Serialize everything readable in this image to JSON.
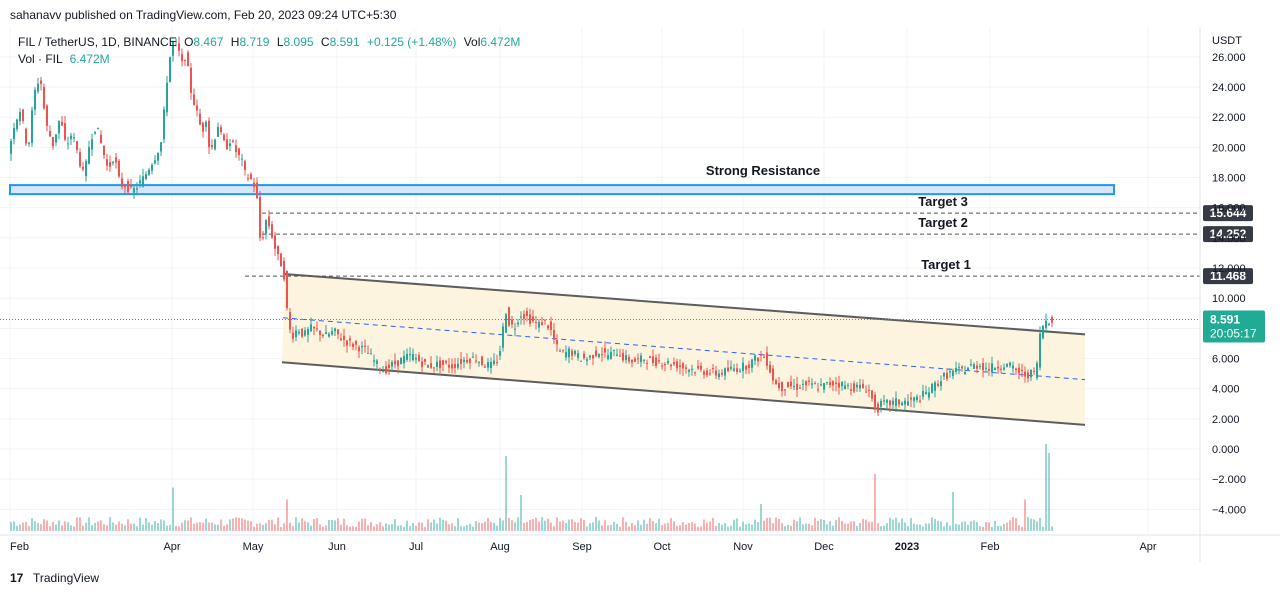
{
  "header": {
    "published": "sahanavv published on TradingView.com, Feb 20, 2023 09:24 UTC+5:30"
  },
  "legend": {
    "symbol": "FIL / TetherUS, 1D, BINANCE",
    "o_label": "O",
    "o_value": "8.467",
    "h_label": "H",
    "h_value": "8.719",
    "l_label": "L",
    "l_value": "8.095",
    "c_label": "C",
    "c_value": "8.591",
    "change": "+0.125 (+1.48%)",
    "vol_label": "Vol",
    "vol_value": "6.472M",
    "vol2_label": "Vol · FIL",
    "vol2_value": "6.472M"
  },
  "footer": {
    "logo": "17",
    "brand": "TradingView"
  },
  "colors": {
    "up": "#26a69a",
    "down": "#ef5350",
    "channel_fill": "#fdf3dc",
    "channel_line": "#5d5d5d",
    "midline": "#2962ff",
    "resistance_fill": "#d6e6fb",
    "resistance_stroke": "#2196f3",
    "price_badge": "#22ab94",
    "target_badge": "#363a45"
  },
  "chart_data": {
    "type": "candlestick",
    "currency": "USDT",
    "y_ticks": [
      "26.000",
      "24.000",
      "22.000",
      "20.000",
      "18.000",
      "16.000",
      "14.000",
      "12.000",
      "10.000",
      "8.000",
      "6.000",
      "4.000",
      "2.000",
      "0.000",
      "−2.000",
      "−4.000"
    ],
    "y_tick_values": [
      26,
      24,
      22,
      20,
      18,
      16,
      14,
      12,
      10,
      8,
      6,
      4,
      2,
      0,
      -2,
      -4
    ],
    "ylim": [
      -5,
      27
    ],
    "x_ticks": [
      "Feb",
      "Apr",
      "May",
      "Jun",
      "Jul",
      "Aug",
      "Sep",
      "Oct",
      "Nov",
      "Dec",
      "2023",
      "Feb",
      "Apr"
    ],
    "x_tick_bold": [
      false,
      false,
      false,
      false,
      false,
      false,
      false,
      false,
      false,
      false,
      true,
      false,
      false
    ],
    "annotations": {
      "strong_resistance": {
        "label": "Strong Resistance",
        "y_low": 16.9,
        "y_high": 17.5
      },
      "targets": [
        {
          "label": "Target 3",
          "value": 15.644,
          "value_label": "15.644"
        },
        {
          "label": "Target 2",
          "value": 14.252,
          "value_label": "14.252"
        },
        {
          "label": "Target 1",
          "value": 11.468,
          "value_label": "11.468"
        }
      ],
      "last_price": {
        "value": 8.591,
        "value_label": "8.591",
        "countdown": "20:05:17"
      }
    },
    "price_path": [
      [
        0,
        19.5
      ],
      [
        6,
        21.5
      ],
      [
        12,
        22.5
      ],
      [
        20,
        19.8
      ],
      [
        26,
        23.5
      ],
      [
        32,
        24.8
      ],
      [
        38,
        21.5
      ],
      [
        45,
        20.2
      ],
      [
        52,
        22.0
      ],
      [
        58,
        20.0
      ],
      [
        64,
        21.0
      ],
      [
        70,
        19.5
      ],
      [
        76,
        18.0
      ],
      [
        82,
        20.5
      ],
      [
        88,
        21.5
      ],
      [
        94,
        20.0
      ],
      [
        100,
        18.5
      ],
      [
        106,
        19.5
      ],
      [
        112,
        17.5
      ],
      [
        118,
        17.5
      ],
      [
        124,
        17.0
      ],
      [
        130,
        17.5
      ],
      [
        136,
        18.0
      ],
      [
        142,
        18.8
      ],
      [
        148,
        19.5
      ],
      [
        154,
        20.5
      ],
      [
        158,
        24.0
      ],
      [
        162,
        26.0
      ],
      [
        166,
        27.2
      ],
      [
        170,
        26.5
      ],
      [
        174,
        25.5
      ],
      [
        178,
        26.2
      ],
      [
        182,
        24.0
      ],
      [
        186,
        23.0
      ],
      [
        190,
        22.0
      ],
      [
        194,
        21.0
      ],
      [
        198,
        22.0
      ],
      [
        202,
        19.5
      ],
      [
        206,
        20.5
      ],
      [
        210,
        21.5
      ],
      [
        214,
        20.5
      ],
      [
        218,
        20.0
      ],
      [
        222,
        20.5
      ],
      [
        226,
        20.0
      ],
      [
        230,
        19.5
      ],
      [
        234,
        19.0
      ],
      [
        238,
        18.0
      ],
      [
        242,
        18.0
      ],
      [
        246,
        17.5
      ],
      [
        249,
        16.5
      ],
      [
        251,
        14.5
      ],
      [
        253,
        13.5
      ],
      [
        256,
        14.5
      ],
      [
        259,
        15.5
      ],
      [
        262,
        14.5
      ],
      [
        265,
        14.0
      ],
      [
        268,
        13.0
      ],
      [
        271,
        12.5
      ],
      [
        274,
        12.2
      ],
      [
        277,
        11.2
      ],
      [
        280,
        8.2
      ],
      [
        284,
        7.5
      ],
      [
        290,
        8.0
      ],
      [
        296,
        7.5
      ],
      [
        302,
        8.0
      ],
      [
        310,
        7.8
      ],
      [
        318,
        7.5
      ],
      [
        326,
        7.8
      ],
      [
        334,
        7.3
      ],
      [
        342,
        7.0
      ],
      [
        350,
        6.8
      ],
      [
        358,
        6.5
      ],
      [
        364,
        6.0
      ],
      [
        370,
        5.5
      ],
      [
        376,
        5.2
      ],
      [
        382,
        5.5
      ],
      [
        388,
        5.7
      ],
      [
        396,
        6.0
      ],
      [
        404,
        6.2
      ],
      [
        412,
        5.8
      ],
      [
        420,
        5.5
      ],
      [
        428,
        5.6
      ],
      [
        436,
        5.6
      ],
      [
        444,
        5.5
      ],
      [
        452,
        5.8
      ],
      [
        460,
        6.0
      ],
      [
        468,
        6.0
      ],
      [
        476,
        5.6
      ],
      [
        484,
        5.5
      ],
      [
        490,
        6.0
      ],
      [
        494,
        7.2
      ],
      [
        497,
        9.5
      ],
      [
        500,
        8.5
      ],
      [
        506,
        8.0
      ],
      [
        512,
        9.0
      ],
      [
        518,
        8.8
      ],
      [
        524,
        8.5
      ],
      [
        530,
        8.2
      ],
      [
        536,
        8.5
      ],
      [
        542,
        8.0
      ],
      [
        546,
        7.2
      ],
      [
        550,
        6.5
      ],
      [
        556,
        6.3
      ],
      [
        562,
        6.5
      ],
      [
        568,
        6.2
      ],
      [
        574,
        6.0
      ],
      [
        580,
        6.0
      ],
      [
        586,
        6.3
      ],
      [
        592,
        6.5
      ],
      [
        598,
        6.2
      ],
      [
        604,
        6.3
      ],
      [
        610,
        6.5
      ],
      [
        616,
        6.0
      ],
      [
        622,
        5.9
      ],
      [
        628,
        5.8
      ],
      [
        636,
        6.0
      ],
      [
        644,
        5.8
      ],
      [
        652,
        5.8
      ],
      [
        660,
        5.7
      ],
      [
        668,
        5.6
      ],
      [
        676,
        5.4
      ],
      [
        684,
        5.3
      ],
      [
        692,
        5.2
      ],
      [
        700,
        5.1
      ],
      [
        708,
        5.0
      ],
      [
        716,
        5.1
      ],
      [
        724,
        5.3
      ],
      [
        732,
        5.4
      ],
      [
        740,
        5.6
      ],
      [
        748,
        6.0
      ],
      [
        755,
        6.2
      ],
      [
        760,
        5.7
      ],
      [
        764,
        4.8
      ],
      [
        768,
        4.3
      ],
      [
        774,
        4.1
      ],
      [
        780,
        4.2
      ],
      [
        788,
        4.1
      ],
      [
        796,
        4.3
      ],
      [
        804,
        4.2
      ],
      [
        812,
        4.1
      ],
      [
        820,
        4.3
      ],
      [
        828,
        4.4
      ],
      [
        836,
        4.2
      ],
      [
        844,
        4.1
      ],
      [
        852,
        4.1
      ],
      [
        858,
        4.0
      ],
      [
        862,
        3.8
      ],
      [
        866,
        2.8
      ],
      [
        870,
        2.7
      ],
      [
        874,
        3.0
      ],
      [
        880,
        3.0
      ],
      [
        888,
        3.1
      ],
      [
        896,
        3.1
      ],
      [
        904,
        3.2
      ],
      [
        912,
        3.4
      ],
      [
        920,
        3.8
      ],
      [
        928,
        4.3
      ],
      [
        936,
        4.8
      ],
      [
        944,
        5.1
      ],
      [
        952,
        5.2
      ],
      [
        958,
        5.3
      ],
      [
        962,
        5.5
      ],
      [
        966,
        5.5
      ],
      [
        972,
        5.6
      ],
      [
        980,
        5.3
      ],
      [
        988,
        5.5
      ],
      [
        996,
        5.6
      ],
      [
        1004,
        5.4
      ],
      [
        1010,
        5.1
      ],
      [
        1016,
        4.9
      ],
      [
        1022,
        5.0
      ],
      [
        1026,
        5.0
      ],
      [
        1029,
        5.7
      ],
      [
        1032,
        7.5
      ],
      [
        1035,
        8.2
      ],
      [
        1038,
        8.5
      ],
      [
        1041,
        8.6
      ]
    ],
    "volume_spikes": [
      [
        162,
        2.9
      ],
      [
        275,
        2.1
      ],
      [
        495,
        5.0
      ],
      [
        510,
        2.4
      ],
      [
        750,
        1.8
      ],
      [
        865,
        3.8
      ],
      [
        943,
        2.6
      ],
      [
        1015,
        2.1
      ],
      [
        1034,
        5.8
      ],
      [
        1038,
        5.2
      ]
    ],
    "channel": {
      "upper": [
        [
          275,
          11.6
        ],
        [
          1075,
          7.6
        ]
      ],
      "lower": [
        [
          272,
          5.75
        ],
        [
          1075,
          1.6
        ]
      ],
      "mid": [
        [
          273,
          8.7
        ],
        [
          1075,
          4.6
        ]
      ]
    }
  }
}
